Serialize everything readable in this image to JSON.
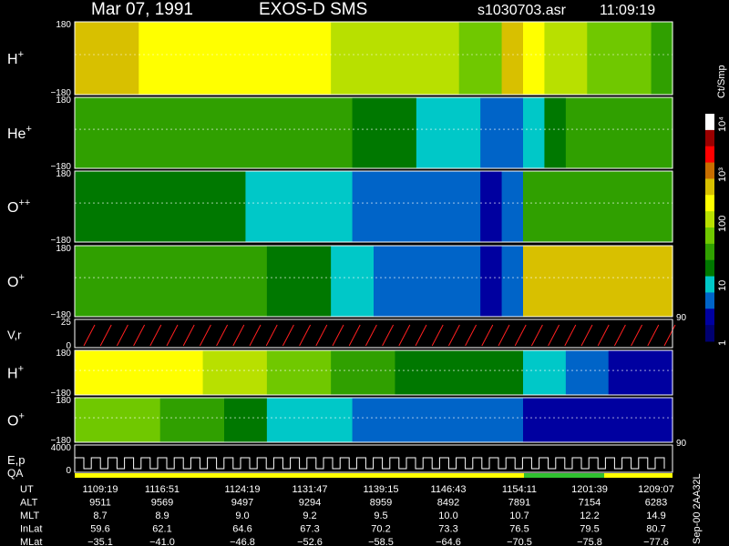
{
  "header": {
    "date": "Mar 07, 1991",
    "instrument": "EXOS-D SMS",
    "file": "s1030703.asr",
    "time": "11:09:19"
  },
  "colorbar": {
    "unit": "Ct/Smp",
    "ticks": [
      "10⁴",
      "10³",
      "100",
      "10",
      "1"
    ],
    "colors": [
      "#ffffff",
      "#9a0000",
      "#ff0000",
      "#c86e00",
      "#d8c000",
      "#ffff00",
      "#b8e000",
      "#70c800",
      "#30a000",
      "#007800",
      "#00c8c8",
      "#0064c8",
      "#0000a0",
      "#000070"
    ]
  },
  "color_levels": [
    "#000070",
    "#0000a0",
    "#0064c8",
    "#00c8c8",
    "#007800",
    "#30a000",
    "#70c800",
    "#b8e000",
    "#ffff00",
    "#d8c000",
    "#c86e00",
    "#ff0000",
    "#9a0000",
    "#ffffff"
  ],
  "chart_data": {
    "type": "heatmap",
    "panels": [
      {
        "label": "H",
        "sup": "+",
        "ytop": "180",
        "ybot": "−180"
      },
      {
        "label": "He",
        "sup": "+",
        "ytop": "180",
        "ybot": "−180"
      },
      {
        "label": "O",
        "sup": "++",
        "ytop": "180",
        "ybot": "−180"
      },
      {
        "label": "O",
        "sup": "+",
        "ytop": "180",
        "ybot": "−180"
      },
      {
        "label": "V,r",
        "sup": "",
        "ytop": "25",
        "ybot": "0"
      },
      {
        "label": "H",
        "sup": "+",
        "ytop": "180",
        "ybot": "−180"
      },
      {
        "label": "O",
        "sup": "+",
        "ytop": "180",
        "ybot": "−180"
      },
      {
        "label": "E,p",
        "sup": "",
        "ytop": "4000",
        "ybot": "0"
      }
    ],
    "right_labels": [
      "90",
      "90"
    ],
    "qa_label": "QA",
    "intensity_levels": [
      [
        9,
        9,
        9,
        8,
        8,
        8,
        8,
        8,
        8,
        8,
        8,
        8,
        7,
        7,
        7,
        7,
        7,
        7,
        6,
        6,
        9,
        8,
        7,
        7,
        6,
        6,
        6,
        5
      ],
      [
        5,
        5,
        5,
        5,
        5,
        5,
        5,
        5,
        5,
        5,
        5,
        5,
        5,
        4,
        4,
        4,
        3,
        3,
        3,
        2,
        2,
        3,
        4,
        5,
        5,
        5,
        5,
        5
      ],
      [
        4,
        4,
        4,
        4,
        4,
        4,
        4,
        4,
        3,
        3,
        3,
        3,
        3,
        2,
        2,
        2,
        2,
        2,
        2,
        1,
        2,
        5,
        5,
        5,
        5,
        5,
        5,
        5
      ],
      [
        5,
        5,
        5,
        5,
        5,
        5,
        5,
        5,
        5,
        4,
        4,
        4,
        3,
        3,
        2,
        2,
        2,
        2,
        2,
        1,
        2,
        9,
        9,
        9,
        9,
        9,
        9,
        9
      ],
      [
        0,
        0,
        0,
        0,
        0,
        0,
        0,
        0,
        0,
        0,
        0,
        0,
        0,
        0,
        0,
        0,
        0,
        0,
        0,
        0,
        0,
        0,
        0,
        0,
        0,
        0,
        0,
        0
      ],
      [
        8,
        8,
        8,
        8,
        8,
        8,
        7,
        7,
        7,
        6,
        6,
        6,
        5,
        5,
        5,
        4,
        4,
        4,
        4,
        4,
        4,
        3,
        3,
        2,
        2,
        1,
        1,
        1
      ],
      [
        6,
        6,
        6,
        6,
        5,
        5,
        5,
        4,
        4,
        3,
        3,
        3,
        3,
        2,
        2,
        2,
        2,
        2,
        2,
        2,
        2,
        1,
        1,
        1,
        1,
        1,
        1,
        1
      ],
      [
        0,
        0,
        0,
        0,
        0,
        0,
        0,
        0,
        0,
        0,
        0,
        0,
        0,
        0,
        0,
        0,
        0,
        0,
        0,
        0,
        0,
        0,
        0,
        0,
        0,
        0,
        0,
        0
      ]
    ]
  },
  "footer": {
    "rows": [
      {
        "label": "UT",
        "values": [
          "1109:19",
          "1116:51",
          "1124:19",
          "1131:47",
          "1139:15",
          "1146:43",
          "1154:11",
          "1201:39",
          "1209:07"
        ]
      },
      {
        "label": "ALT",
        "values": [
          "9511",
          "9569",
          "9497",
          "9294",
          "8959",
          "8492",
          "7891",
          "7154",
          "6283"
        ]
      },
      {
        "label": "MLT",
        "values": [
          "8.7",
          "8.9",
          "9.0",
          "9.2",
          "9.5",
          "10.0",
          "10.7",
          "12.2",
          "14.9"
        ]
      },
      {
        "label": "InLat",
        "values": [
          "59.6",
          "62.1",
          "64.6",
          "67.3",
          "70.2",
          "73.3",
          "76.5",
          "79.5",
          "80.7"
        ]
      },
      {
        "label": "MLat",
        "values": [
          "−35.1",
          "−41.0",
          "−46.8",
          "−52.6",
          "−58.5",
          "−64.6",
          "−70.5",
          "−75.8",
          "−77.6"
        ]
      }
    ],
    "version": "Sep-00 2AA32L"
  }
}
